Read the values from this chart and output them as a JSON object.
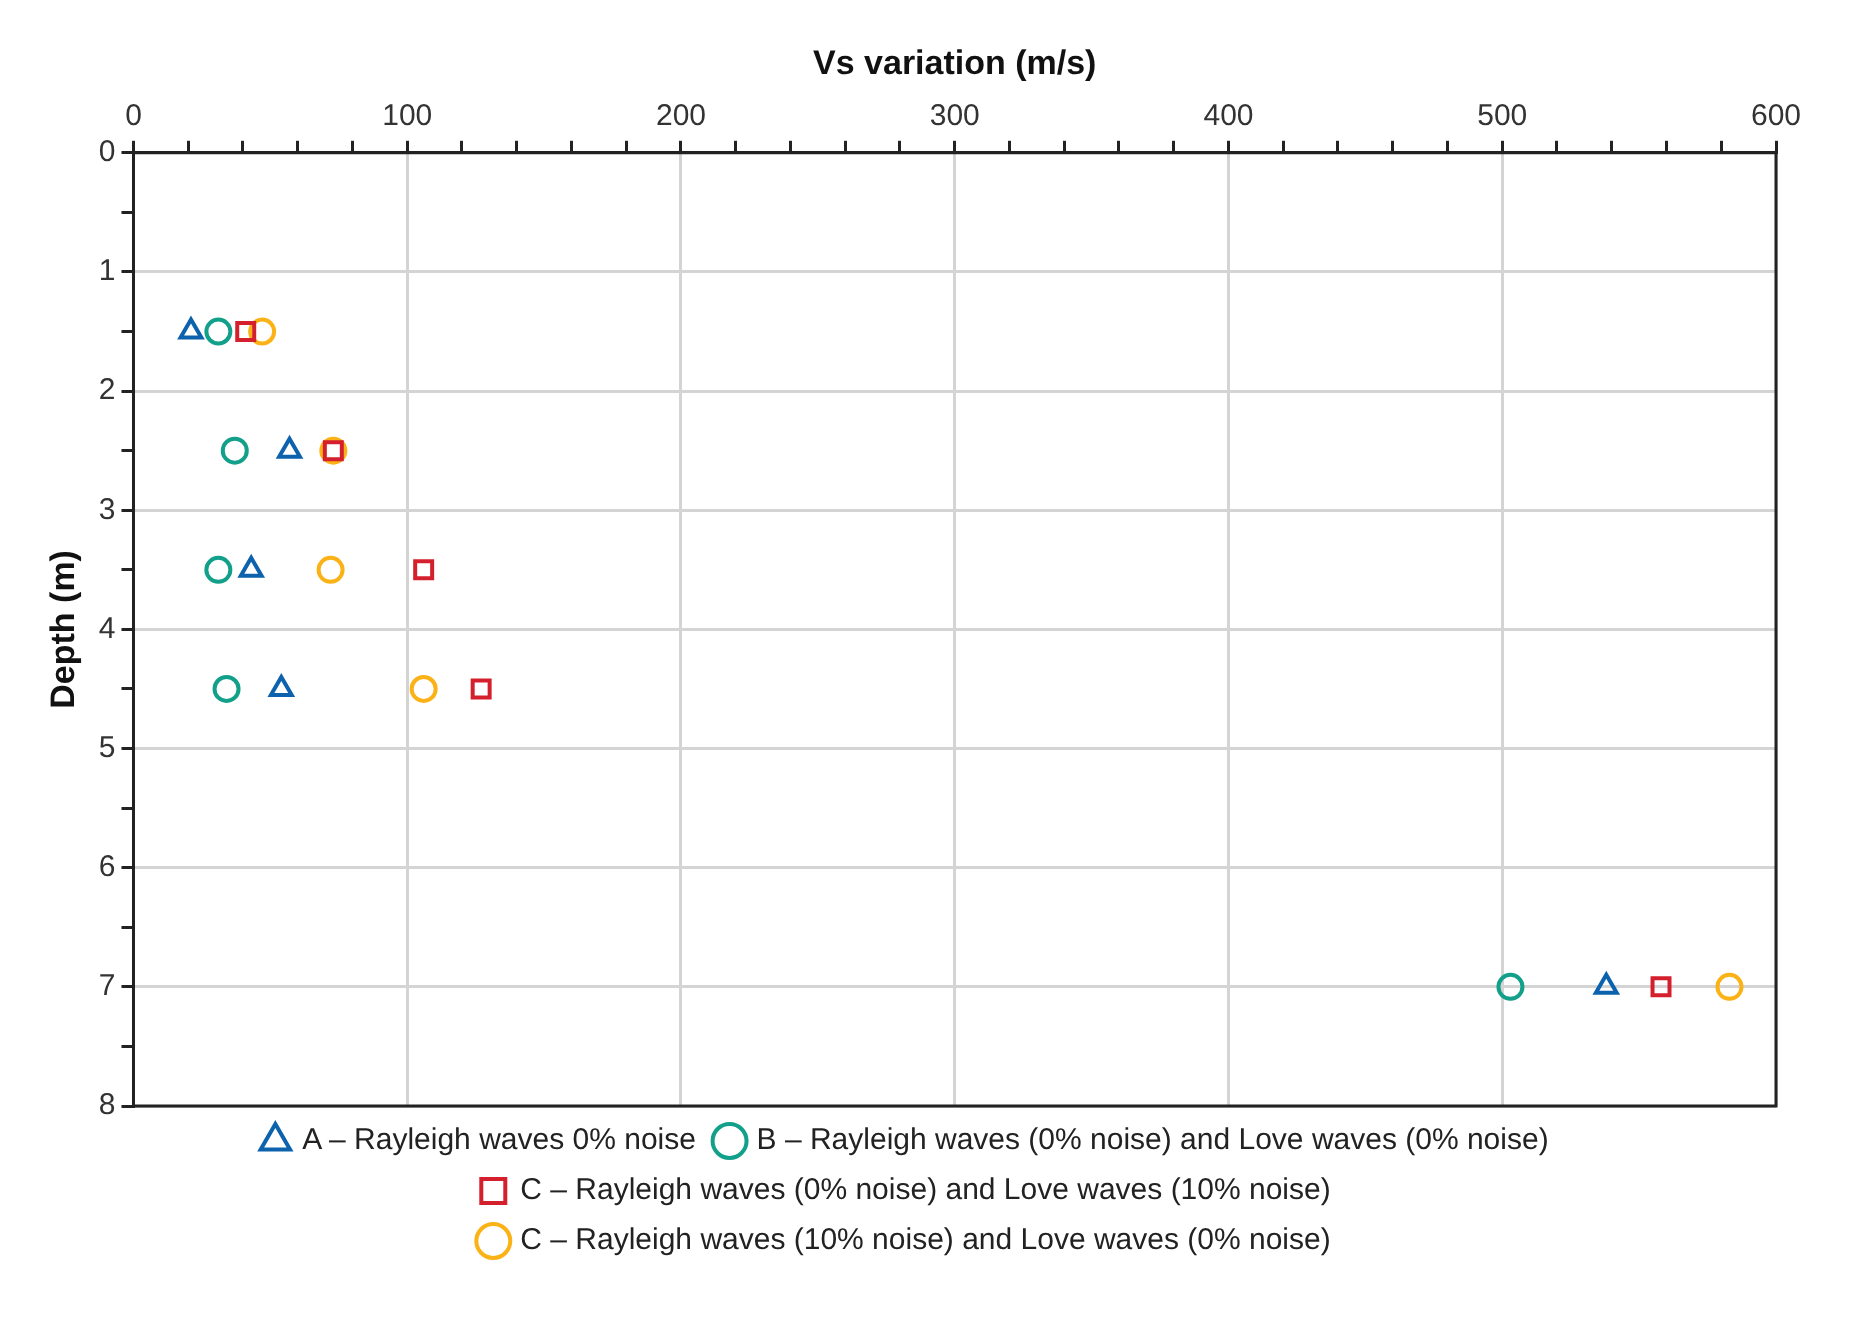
{
  "chart_data": {
    "type": "scatter",
    "xlabel": "Vs variation (m/s)",
    "ylabel": "Depth (m)",
    "xlim": [
      0,
      600
    ],
    "xticks": [
      0,
      {
        "value": 20,
        "label": null
      },
      {
        "value": 40,
        "label": null
      },
      {
        "value": 60,
        "label": null
      },
      {
        "value": 80,
        "label": null
      },
      100,
      {
        "value": 120,
        "label": null
      },
      {
        "value": 140,
        "label": null
      },
      {
        "value": 160,
        "label": null
      },
      {
        "value": 180,
        "label": null
      },
      200,
      {
        "value": 220,
        "label": null
      },
      {
        "value": 240,
        "label": null
      },
      {
        "value": 260,
        "label": null
      },
      {
        "value": 280,
        "label": null
      },
      300,
      {
        "value": 320,
        "label": null
      },
      {
        "value": 340,
        "label": null
      },
      {
        "value": 360,
        "label": null
      },
      {
        "value": 380,
        "label": null
      },
      400,
      {
        "value": 420,
        "label": null
      },
      {
        "value": 440,
        "label": null
      },
      {
        "value": 460,
        "label": null
      },
      {
        "value": 480,
        "label": null
      },
      500,
      {
        "value": 520,
        "label": null
      },
      {
        "value": 540,
        "label": null
      },
      {
        "value": 560,
        "label": null
      },
      {
        "value": 580,
        "label": null
      },
      600
    ],
    "ylim": [
      8,
      0
    ],
    "yticks": [
      0,
      {
        "value": 0.5,
        "label": null
      },
      1,
      {
        "value": 1.5,
        "label": null
      },
      2,
      {
        "value": 2.5,
        "label": null
      },
      3,
      {
        "value": 3.5,
        "label": null
      },
      4,
      {
        "value": 4.5,
        "label": null
      },
      5,
      {
        "value": 5.5,
        "label": null
      },
      6,
      {
        "value": 6.5,
        "label": null
      },
      7,
      {
        "value": 7.5,
        "label": null
      },
      8
    ],
    "grid": true,
    "legend": "bottom",
    "series": [
      {
        "name": "A – Rayleigh waves 0% noise",
        "color": "#0d62ad",
        "marker": "triangle",
        "x": [
          21,
          57,
          43,
          54,
          538
        ],
        "values": [
          1.5,
          2.5,
          3.5,
          4.5,
          7
        ]
      },
      {
        "name": "B – Rayleigh waves (0% noise) and Love waves (0% noise)",
        "color": "#12a08a",
        "marker": "circle",
        "x": [
          31,
          37,
          31,
          34,
          503
        ],
        "values": [
          1.5,
          2.5,
          3.5,
          4.5,
          7
        ]
      },
      {
        "name": "C – Rayleigh waves (0% noise) and Love waves (10% noise)",
        "color": "#d4202c",
        "marker": "square",
        "x": [
          41,
          73,
          106,
          127,
          558
        ],
        "values": [
          1.5,
          2.5,
          3.5,
          4.5,
          7
        ]
      },
      {
        "name": "C – Rayleigh waves (10% noise) and Love waves (0% noise)",
        "color": "#fbb216",
        "marker": "circle",
        "x": [
          47,
          73,
          72,
          106,
          583
        ],
        "values": [
          1.5,
          2.5,
          3.5,
          4.5,
          7
        ]
      }
    ]
  }
}
